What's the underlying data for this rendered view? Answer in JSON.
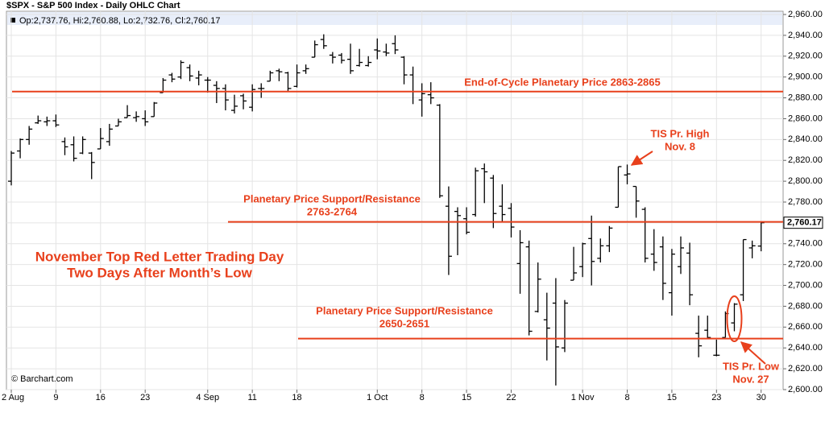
{
  "chart_data": {
    "type": "ohlc",
    "title": "$SPX - S&P 500 Index - Daily OHLC Chart",
    "info": "Op:2,737.76, Hi:2,760.88, Lo:2,732.76, Cl:2,760.17",
    "watermark": "© Barchart.com",
    "last_label": "2,760.17",
    "color": "#000000",
    "level_color": "#e8401c",
    "grid": true,
    "categories": [
      "2 Aug",
      null,
      null,
      null,
      null,
      "9",
      null,
      null,
      null,
      null,
      "16",
      null,
      null,
      null,
      null,
      "23",
      null,
      null,
      null,
      null,
      null,
      null,
      "4 Sep",
      null,
      null,
      null,
      null,
      "11",
      null,
      null,
      null,
      null,
      "18",
      null,
      null,
      null,
      null,
      null,
      null,
      null,
      null,
      "1 Oct",
      null,
      null,
      null,
      null,
      "8",
      null,
      null,
      null,
      null,
      "15",
      null,
      null,
      null,
      null,
      "22",
      null,
      null,
      null,
      null,
      null,
      null,
      null,
      "1 Nov",
      null,
      null,
      null,
      null,
      "8",
      null,
      null,
      null,
      null,
      "15",
      null,
      null,
      null,
      null,
      "23",
      null,
      null,
      null,
      null,
      "30"
    ],
    "open": [
      2800,
      2829,
      2840,
      2856,
      2857,
      2858,
      2838,
      2835,
      2827,
      2827,
      2831,
      2838,
      2853,
      2861,
      2861,
      2860,
      2862,
      2885,
      2902,
      2900,
      2909,
      2899,
      2897,
      2892,
      2889,
      2868,
      2882,
      2871,
      2889,
      2896,
      2906,
      2904,
      2891,
      2906,
      2919,
      2936,
      2921,
      2921,
      2917,
      2911,
      2911,
      2926,
      2924,
      2932,
      2919,
      2902,
      2878,
      2883,
      2873,
      2776,
      2771,
      2764,
      2768,
      2812,
      2803,
      2776,
      2774,
      2721,
      2737,
      2675,
      2667,
      2683,
      2640,
      2705,
      2718,
      2745,
      2726,
      2738,
      2775,
      2806,
      2795,
      2773,
      2730,
      2737,
      2693,
      2718,
      2731,
      2654,
      2657,
      2633,
      2650,
      2664,
      2691,
      2736,
      2737.76
    ],
    "high": [
      2829,
      2841,
      2853,
      2863,
      2862,
      2864,
      2842,
      2843,
      2843,
      2828,
      2851,
      2855,
      2860,
      2873,
      2867,
      2868,
      2876,
      2899,
      2904,
      2916,
      2912,
      2906,
      2900,
      2896,
      2893,
      2883,
      2884,
      2893,
      2894,
      2906,
      2908,
      2905,
      2912,
      2912,
      2935,
      2941,
      2924,
      2923,
      2932,
      2927,
      2920,
      2937,
      2932,
      2940,
      2920,
      2910,
      2894,
      2895,
      2874,
      2795,
      2775,
      2775,
      2813,
      2817,
      2806,
      2797,
      2779,
      2753,
      2743,
      2722,
      2693,
      2707,
      2686,
      2737,
      2741,
      2767,
      2745,
      2757,
      2814,
      2816,
      2795,
      2775,
      2754,
      2747,
      2735,
      2747,
      2741,
      2671,
      2671,
      2648,
      2675,
      2683,
      2744,
      2743,
      2760.88
    ],
    "low": [
      2796,
      2822,
      2835,
      2855,
      2853,
      2852,
      2825,
      2819,
      2826,
      2802,
      2831,
      2834,
      2853,
      2861,
      2857,
      2853,
      2862,
      2885,
      2895,
      2898,
      2896,
      2892,
      2885,
      2875,
      2868,
      2865,
      2869,
      2867,
      2880,
      2896,
      2896,
      2886,
      2890,
      2903,
      2919,
      2927,
      2913,
      2913,
      2903,
      2910,
      2910,
      2917,
      2920,
      2922,
      2893,
      2874,
      2862,
      2874,
      2784,
      2710,
      2729,
      2749,
      2766,
      2779,
      2755,
      2761,
      2746,
      2692,
      2652,
      2674,
      2628,
      2604,
      2636,
      2705,
      2708,
      2700,
      2722,
      2732,
      2775,
      2797,
      2765,
      2722,
      2714,
      2686,
      2671,
      2711,
      2681,
      2631,
      2649,
      2632,
      2650,
      2656,
      2685,
      2726,
      2732.76
    ],
    "close": [
      2827,
      2840,
      2850,
      2858,
      2858,
      2854,
      2833,
      2822,
      2840,
      2818,
      2841,
      2850,
      2857,
      2863,
      2862,
      2857,
      2875,
      2897,
      2898,
      2914,
      2901,
      2902,
      2897,
      2889,
      2878,
      2872,
      2877,
      2888,
      2889,
      2904,
      2905,
      2889,
      2904,
      2908,
      2931,
      2930,
      2919,
      2916,
      2906,
      2914,
      2914,
      2925,
      2923,
      2926,
      2902,
      2886,
      2884,
      2880,
      2786,
      2728,
      2767,
      2751,
      2810,
      2809,
      2769,
      2768,
      2756,
      2741,
      2656,
      2706,
      2659,
      2641,
      2683,
      2712,
      2740,
      2723,
      2738,
      2755,
      2814,
      2807,
      2781,
      2726,
      2722,
      2702,
      2730,
      2736,
      2691,
      2642,
      2650,
      2633,
      2673,
      2682,
      2744,
      2738,
      2760.17
    ],
    "ylim": [
      2600,
      2960
    ],
    "yticks": [
      {
        "value": 2600,
        "label": "2,600.00"
      },
      {
        "value": 2620,
        "label": "2,620.00"
      },
      {
        "value": 2640,
        "label": "2,640.00"
      },
      {
        "value": 2660,
        "label": "2,660.00"
      },
      {
        "value": 2680,
        "label": "2,680.00"
      },
      {
        "value": 2700,
        "label": "2,700.00"
      },
      {
        "value": 2720,
        "label": "2,720.00"
      },
      {
        "value": 2740,
        "label": "2,740.00"
      },
      {
        "value": 2760,
        "label": "2,760.00"
      },
      {
        "value": 2780,
        "label": "2,780.00"
      },
      {
        "value": 2800,
        "label": "2,800.00"
      },
      {
        "value": 2820,
        "label": "2,820.00"
      },
      {
        "value": 2840,
        "label": "2,840.00"
      },
      {
        "value": 2860,
        "label": "2,860.00"
      },
      {
        "value": 2880,
        "label": "2,880.00"
      },
      {
        "value": 2900,
        "label": "2,900.00"
      },
      {
        "value": 2920,
        "label": "2,920.00"
      },
      {
        "value": 2940,
        "label": "2,940.00"
      },
      {
        "value": 2960,
        "label": "2,960.00"
      }
    ],
    "levels": [
      2886,
      2761,
      2649
    ],
    "annotations": [
      {
        "lines": [
          "End-of-Cycle Planetary Price 2863-2865"
        ]
      },
      {
        "lines": [
          "Planetary Price Support/Resistance",
          "2763-2764"
        ]
      },
      {
        "lines": [
          "Planetary Price Support/Resistance",
          "2650-2651"
        ]
      },
      {
        "lines": [
          "TIS Pr. High",
          "Nov. 8"
        ]
      },
      {
        "lines": [
          "TIS Pr. Low",
          "Nov. 27"
        ]
      },
      {
        "lines": [
          "November Top Red Letter Trading Day",
          "Two Days After Month’s Low"
        ]
      }
    ]
  }
}
